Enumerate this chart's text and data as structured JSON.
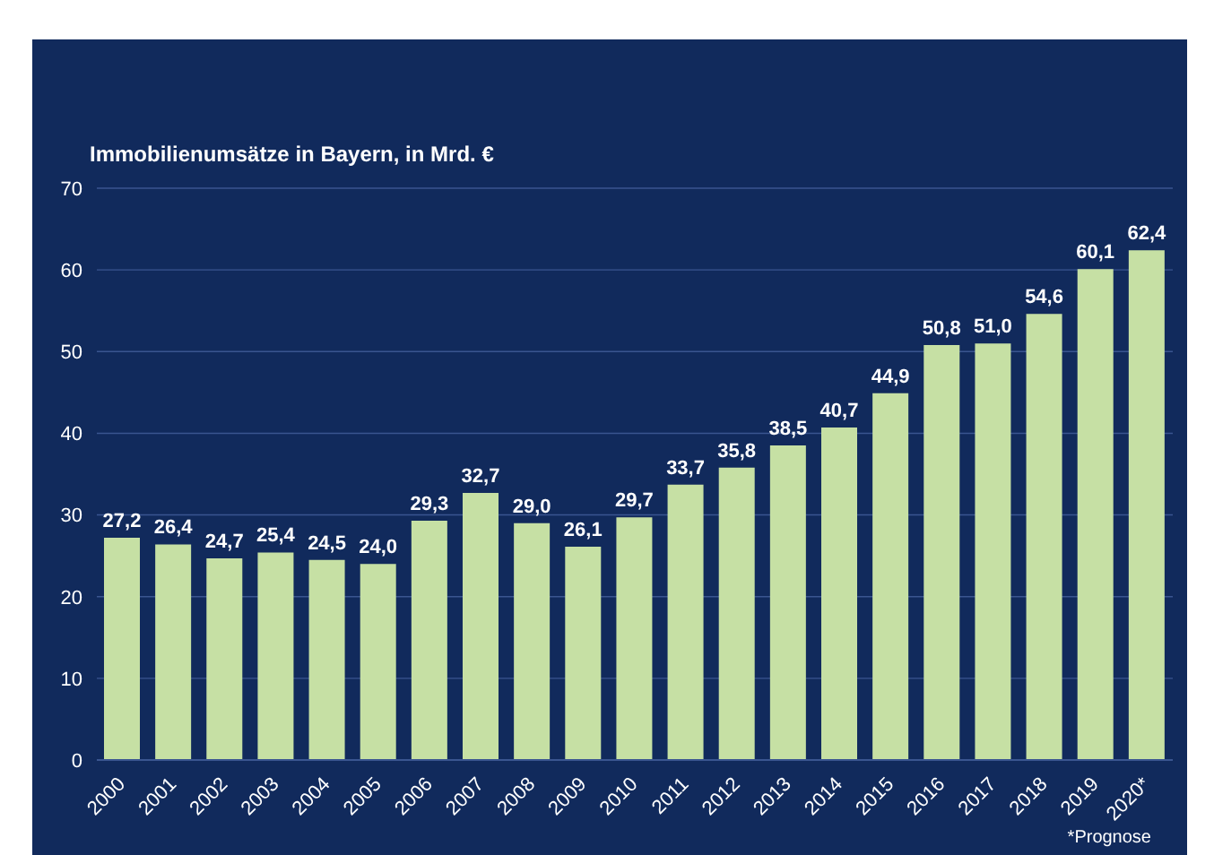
{
  "chart_data": {
    "type": "bar",
    "title": "Immobilienumsätze in Bayern, in Mrd. €",
    "categories": [
      "2000",
      "2001",
      "2002",
      "2003",
      "2004",
      "2005",
      "2006",
      "2007",
      "2008",
      "2009",
      "2010",
      "2011",
      "2012",
      "2013",
      "2014",
      "2015",
      "2016",
      "2017",
      "2018",
      "2019",
      "2020*"
    ],
    "values": [
      27.2,
      26.4,
      24.7,
      25.4,
      24.5,
      24.0,
      29.3,
      32.7,
      29.0,
      26.1,
      29.7,
      33.7,
      35.8,
      38.5,
      40.7,
      44.9,
      50.8,
      51.0,
      54.6,
      60.1,
      62.4
    ],
    "value_labels": [
      "27,2",
      "26,4",
      "24,7",
      "25,4",
      "24,5",
      "24,0",
      "29,3",
      "32,7",
      "29,0",
      "26,1",
      "29,7",
      "33,7",
      "35,8",
      "38,5",
      "40,7",
      "44,9",
      "50,8",
      "51,0",
      "54,6",
      "60,1",
      "62,4"
    ],
    "color": "#c6e0a4",
    "ylim": [
      0,
      70
    ],
    "yticks": [
      0,
      10,
      20,
      30,
      40,
      50,
      60,
      70
    ],
    "grid": "y",
    "annotations": [
      "*Prognose"
    ]
  }
}
